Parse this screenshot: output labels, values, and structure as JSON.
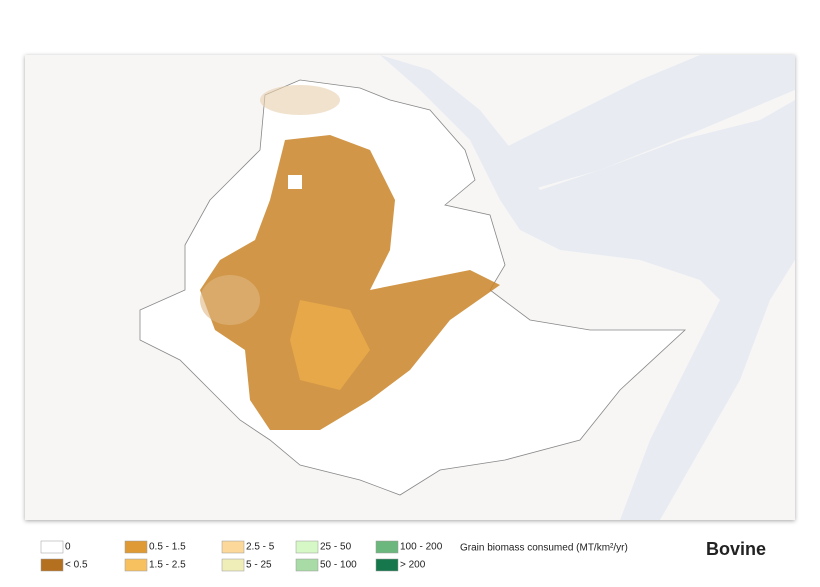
{
  "map_title": "Bovine",
  "legend": {
    "title": "Grain biomass consumed (MT/km²/yr)",
    "items": [
      {
        "label": "0",
        "color": "#ffffff"
      },
      {
        "label": "< 0.5",
        "color": "#b5701f"
      },
      {
        "label": "0.5 - 1.5",
        "color": "#e09a35"
      },
      {
        "label": "1.5 - 2.5",
        "color": "#f8c160"
      },
      {
        "label": "2.5 - 5",
        "color": "#fcd89a"
      },
      {
        "label": "5 - 25",
        "color": "#efedb8"
      },
      {
        "label": "25 - 50",
        "color": "#d6f7c6"
      },
      {
        "label": "50 - 100",
        "color": "#a8dba6"
      },
      {
        "label": "100 - 200",
        "color": "#6cb77d"
      },
      {
        "label": "> 200",
        "color": "#17774c"
      }
    ]
  }
}
